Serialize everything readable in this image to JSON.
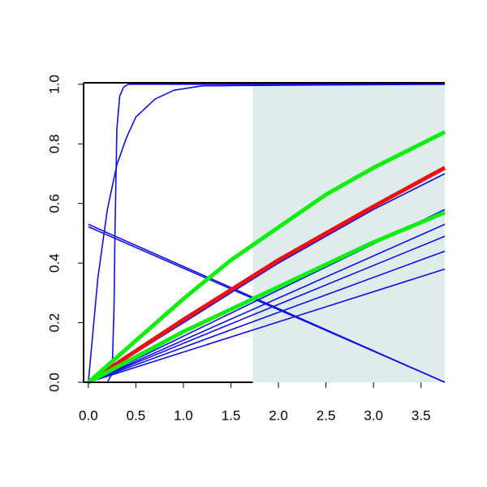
{
  "chart_data": {
    "type": "line",
    "xlim": [
      -0.05,
      3.75
    ],
    "ylim": [
      0,
      1.005
    ],
    "xticks": [
      {
        "value": 0,
        "label": "0.0"
      },
      0.5,
      {
        "value": 1,
        "label": "1.0"
      },
      1.5,
      {
        "value": 2,
        "label": "2.0"
      },
      2.5,
      {
        "value": 3,
        "label": "3.0"
      },
      3.5
    ],
    "yticks": [
      {
        "value": 0,
        "label": "0.0"
      },
      0.2,
      0.4,
      0.6,
      0.8,
      {
        "value": 1,
        "label": "1.0"
      }
    ],
    "shaded_xmin": 1.73,
    "shade_color": "#deecec",
    "series": [
      {
        "color": "#1010e0",
        "width": 1.6,
        "x": [
          0,
          0.2,
          0.25,
          0.27,
          0.28,
          0.3,
          0.33,
          0.37,
          0.42,
          3.75
        ],
        "values": [
          0,
          0,
          0.03,
          0.25,
          0.5,
          0.85,
          0.96,
          0.99,
          1,
          1
        ]
      },
      {
        "color": "#1010e0",
        "width": 1.6,
        "x": [
          0,
          0.1,
          0.2,
          0.3,
          0.4,
          0.5,
          0.7,
          0.9,
          1.2,
          3.75
        ],
        "values": [
          0,
          0.35,
          0.58,
          0.73,
          0.82,
          0.89,
          0.95,
          0.98,
          0.995,
          1
        ]
      },
      {
        "color": "#1010e0",
        "width": 1.6,
        "x": [
          0,
          3.75
        ],
        "values": [
          0.53,
          0
        ]
      },
      {
        "color": "#1010e0",
        "width": 1.6,
        "x": [
          0,
          3.75
        ],
        "values": [
          0.522,
          0
        ]
      },
      {
        "color": "#1010e0",
        "width": 1.6,
        "x": [
          0,
          3.75
        ],
        "values": [
          0,
          0.38
        ]
      },
      {
        "color": "#1010e0",
        "width": 1.6,
        "x": [
          0,
          3.75
        ],
        "values": [
          0,
          0.44
        ]
      },
      {
        "color": "#1010e0",
        "width": 1.6,
        "x": [
          0,
          3.75
        ],
        "values": [
          0,
          0.49
        ]
      },
      {
        "color": "#1010e0",
        "width": 1.6,
        "x": [
          0,
          3.75
        ],
        "values": [
          0,
          0.53
        ]
      },
      {
        "color": "#1010e0",
        "width": 1.6,
        "x": [
          0,
          3.75
        ],
        "values": [
          0,
          0.58
        ]
      },
      {
        "color": "#1010e0",
        "width": 1.6,
        "x": [
          0,
          1,
          2,
          3,
          3.75
        ],
        "values": [
          0,
          0.2,
          0.4,
          0.58,
          0.7
        ]
      },
      {
        "color": "#ee1010",
        "width": 5,
        "x": [
          0,
          1,
          2,
          3,
          3.75
        ],
        "values": [
          0,
          0.21,
          0.41,
          0.59,
          0.72
        ]
      },
      {
        "color": "#10ee10",
        "width": 5,
        "x": [
          0,
          1,
          2,
          3,
          3.75
        ],
        "values": [
          0,
          0.17,
          0.32,
          0.47,
          0.57
        ]
      },
      {
        "color": "#10ee10",
        "width": 5,
        "x": [
          0,
          0.5,
          1,
          1.5,
          2,
          2.5,
          3,
          3.75
        ],
        "values": [
          0,
          0.14,
          0.28,
          0.41,
          0.52,
          0.63,
          0.72,
          0.84
        ]
      }
    ]
  }
}
